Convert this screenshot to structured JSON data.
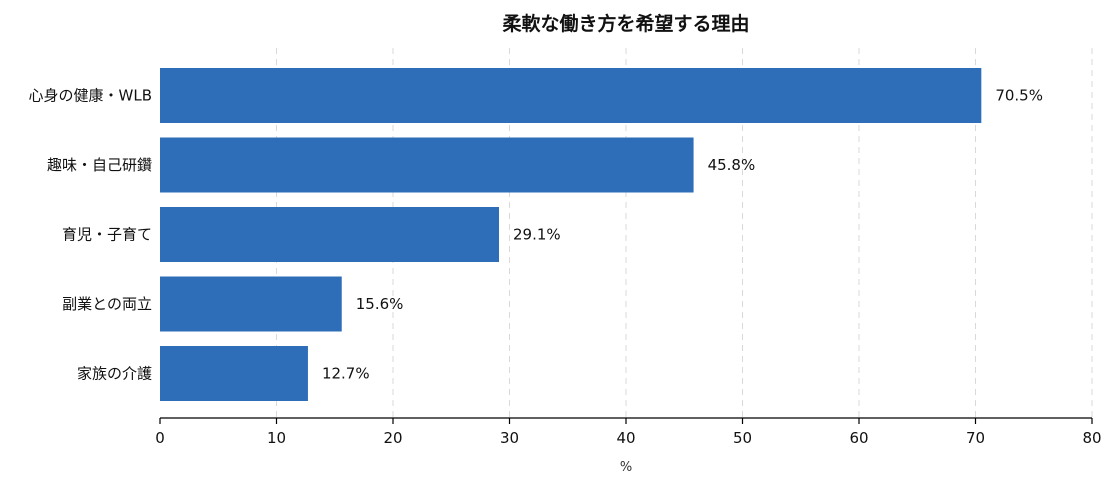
{
  "chart_data": {
    "type": "bar",
    "orientation": "horizontal",
    "title": "柔軟な働き方を希望する理由",
    "xlabel": "%",
    "ylabel": "",
    "xlim": [
      0,
      80
    ],
    "xticks": [
      0,
      10,
      20,
      30,
      40,
      50,
      60,
      70,
      80
    ],
    "categories": [
      "心身の健康・WLB",
      "趣味・自己研鑽",
      "育児・子育て",
      "副業との両立",
      "家族の介護"
    ],
    "values": [
      70.5,
      45.8,
      29.1,
      15.6,
      12.7
    ],
    "value_labels": [
      "70.5%",
      "45.8%",
      "29.1%",
      "15.6%",
      "12.7%"
    ],
    "grid": "vertical-dashed",
    "legend": "none",
    "colors": {
      "bar": "#2e6eb8",
      "grid": "#d9d9d9",
      "axis": "#000000"
    }
  }
}
